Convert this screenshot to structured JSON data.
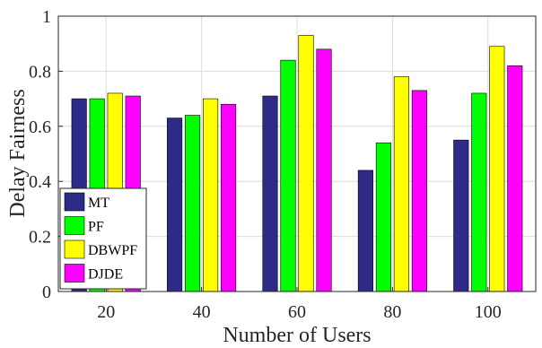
{
  "chart_data": {
    "type": "bar",
    "categories": [
      "20",
      "40",
      "60",
      "80",
      "100"
    ],
    "series": [
      {
        "name": "MT",
        "color": "#2e2a87",
        "values": [
          0.7,
          0.63,
          0.71,
          0.44,
          0.55
        ]
      },
      {
        "name": "PF",
        "color": "#00ff00",
        "values": [
          0.7,
          0.64,
          0.84,
          0.54,
          0.72
        ]
      },
      {
        "name": "DBWPF",
        "color": "#ffff00",
        "values": [
          0.72,
          0.7,
          0.93,
          0.78,
          0.89
        ]
      },
      {
        "name": "DJDE",
        "color": "#ff00ff",
        "values": [
          0.71,
          0.68,
          0.88,
          0.73,
          0.82
        ]
      }
    ],
    "xlabel": "Number of Users",
    "ylabel": "Delay Fairness",
    "ylim": [
      0,
      1
    ],
    "yticks": [
      "0",
      "0.2",
      "0.4",
      "0.6",
      "0.8",
      "1"
    ],
    "grid": true,
    "legend": "bottom-left"
  }
}
